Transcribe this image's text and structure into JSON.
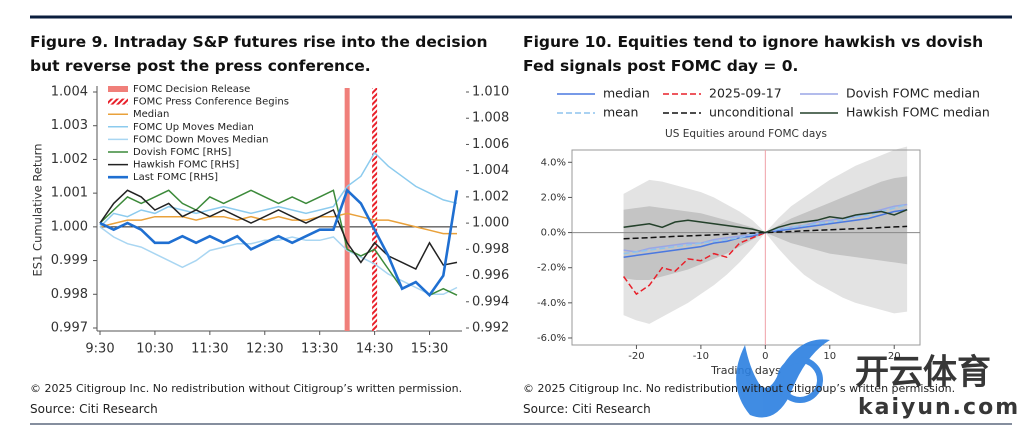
{
  "chart_data": [
    {
      "type": "line",
      "title": "Figure 9. Intraday S&P futures rise into the decision but reverse post the press conference.",
      "y_label": "ES1 Cumulative Return",
      "x": [
        "9:30",
        "9:45",
        "10:00",
        "10:15",
        "10:30",
        "10:45",
        "11:00",
        "11:15",
        "11:30",
        "11:45",
        "12:00",
        "12:15",
        "12:30",
        "12:45",
        "13:00",
        "13:15",
        "13:30",
        "13:45",
        "14:00",
        "14:15",
        "14:30",
        "14:45",
        "15:00",
        "15:15",
        "15:30",
        "15:45",
        "16:00"
      ],
      "xticks": [
        "9:30",
        "10:30",
        "11:30",
        "12:30",
        "13:30",
        "14:30",
        "15:30"
      ],
      "ylim": [
        0.997,
        1.004
      ],
      "yticks": [
        0.997,
        0.998,
        0.999,
        {
          "value": 1,
          "label": "1.000"
        },
        1.001,
        1.002,
        1.003,
        1.004
      ],
      "y2lim": [
        0.992,
        1.01
      ],
      "y2ticks": [
        0.992,
        0.994,
        0.996,
        0.998,
        {
          "value": 1,
          "label": "1.000"
        },
        1.002,
        1.004,
        1.006,
        1.008,
        {
          "value": 1.01,
          "label": "1.010"
        }
      ],
      "baseline": 1,
      "markers": [
        {
          "name": "FOMC Decision Release",
          "x": "14:00",
          "color": "#f07f7a",
          "style": "solid"
        },
        {
          "name": "FOMC Press Conference Begins",
          "x": "14:30",
          "color": "#e8202a",
          "style": "hatched"
        }
      ],
      "series": [
        {
          "name": "Median",
          "color": "#e9a13b",
          "style": "solid",
          "values": [
            1.0,
            1.0001,
            1.0002,
            1.0002,
            1.0003,
            1.0003,
            1.0003,
            1.0002,
            1.0003,
            1.0003,
            1.0002,
            1.0003,
            1.0002,
            1.0003,
            1.0002,
            1.0002,
            1.0003,
            1.0003,
            1.0004,
            1.0003,
            1.0002,
            1.0002,
            1.0001,
            1.0,
            0.9999,
            0.9998,
            0.9998
          ]
        },
        {
          "name": "FOMC Up Moves Median",
          "color": "#8ccbee",
          "style": "solid",
          "values": [
            1.0,
            1.0004,
            1.0003,
            1.0005,
            1.0004,
            1.0006,
            1.0005,
            1.0004,
            1.0005,
            1.0006,
            1.0005,
            1.0004,
            1.0005,
            1.0006,
            1.0005,
            1.0004,
            1.0005,
            1.0006,
            1.0012,
            1.0015,
            1.0022,
            1.0018,
            1.0015,
            1.0012,
            1.001,
            1.0008,
            1.0007
          ]
        },
        {
          "name": "FOMC Down Moves Median",
          "color": "#a9d6f2",
          "style": "solid",
          "values": [
            1.0,
            0.9997,
            0.9995,
            0.9994,
            0.9992,
            0.999,
            0.9988,
            0.999,
            0.9993,
            0.9994,
            0.9995,
            0.9995,
            0.9996,
            0.9996,
            0.9997,
            0.9996,
            0.9996,
            0.9997,
            0.9993,
            0.9991,
            0.9989,
            0.9986,
            0.9984,
            0.9982,
            0.998,
            0.998,
            0.9982
          ]
        },
        {
          "name": "Dovish FOMC [RHS]",
          "color": "#3c8a3a",
          "style": "solid",
          "axis": "y2",
          "values": [
            1.0,
            1.001,
            1.002,
            1.0015,
            1.002,
            1.0025,
            1.0015,
            1.001,
            1.002,
            1.0015,
            1.002,
            1.0025,
            1.002,
            1.0015,
            1.002,
            1.0015,
            1.002,
            1.0025,
            0.998,
            0.9975,
            0.998,
            0.9965,
            0.995,
            0.9955,
            0.9945,
            0.995,
            0.9945
          ]
        },
        {
          "name": "Hawkish FOMC [RHS]",
          "color": "#222222",
          "style": "solid",
          "axis": "y2",
          "values": [
            1.0,
            1.0015,
            1.0025,
            1.002,
            1.001,
            1.0015,
            1.0005,
            1.001,
            1.0005,
            1.001,
            1.0005,
            1.0,
            1.0005,
            1.001,
            1.0005,
            1.0,
            1.0005,
            1.001,
            0.9985,
            0.997,
            0.9985,
            0.9975,
            0.997,
            0.9965,
            0.9985,
            0.9968,
            0.997
          ]
        },
        {
          "name": "Last FOMC [RHS]",
          "color": "#1f6fd1",
          "style": "thick",
          "axis": "y2",
          "values": [
            1.0,
            0.9995,
            1.0,
            0.9995,
            0.9985,
            0.9985,
            0.999,
            0.9985,
            0.999,
            0.9985,
            0.999,
            0.998,
            0.9985,
            0.999,
            0.9985,
            0.999,
            0.9995,
            0.9995,
            1.0025,
            1.0015,
            0.9995,
            0.9975,
            0.995,
            0.9955,
            0.9945,
            0.996,
            1.0025
          ]
        }
      ],
      "copyright": "© 2025 Citigroup Inc. No redistribution without Citigroup’s written permission.",
      "source": "Source: Citi Research"
    },
    {
      "type": "line",
      "title": "Figure 10. Equities tend to ignore hawkish vs dovish Fed signals post FOMC day = 0.",
      "plot_title": "US Equities around FOMC days",
      "x_label": "Trading days",
      "x": [
        -22,
        -20,
        -18,
        -16,
        -14,
        -12,
        -10,
        -8,
        -6,
        -4,
        -2,
        0,
        2,
        4,
        6,
        8,
        10,
        12,
        14,
        16,
        18,
        20,
        22
      ],
      "xlim": [
        -30,
        24
      ],
      "xticks": [
        -20,
        -10,
        0,
        10,
        20
      ],
      "ylim": [
        -6.4,
        4.7
      ],
      "yticks": [
        {
          "value": -6,
          "label": "-6.0%"
        },
        {
          "value": -4,
          "label": "-4.0%"
        },
        {
          "value": -2,
          "label": "-2.0%"
        },
        {
          "value": 0,
          "label": "0.0%"
        },
        {
          "value": 2,
          "label": "2.0%"
        },
        {
          "value": 4,
          "label": "4.0%"
        }
      ],
      "baseline": 0,
      "vline": 0,
      "bands": [
        {
          "color": "#e3e3e3",
          "upper": [
            2.2,
            2.6,
            3.0,
            2.9,
            2.7,
            2.5,
            2.3,
            2.0,
            1.6,
            1.2,
            0.7,
            0.0,
            0.8,
            1.5,
            2.0,
            2.5,
            3.0,
            3.4,
            3.8,
            4.1,
            4.4,
            4.7,
            4.9
          ],
          "lower": [
            -4.7,
            -5.0,
            -5.2,
            -4.8,
            -4.4,
            -4.0,
            -3.5,
            -3.0,
            -2.4,
            -1.7,
            -0.9,
            0.0,
            -0.9,
            -1.7,
            -2.4,
            -2.9,
            -3.3,
            -3.7,
            -4.0,
            -4.2,
            -4.4,
            -4.6,
            -4.5
          ]
        },
        {
          "color": "#c4c4c4",
          "upper": [
            1.3,
            1.4,
            1.5,
            1.4,
            1.3,
            1.2,
            1.1,
            0.9,
            0.7,
            0.5,
            0.3,
            0.0,
            0.4,
            0.8,
            1.1,
            1.4,
            1.7,
            2.0,
            2.3,
            2.6,
            2.9,
            3.1,
            3.2
          ],
          "lower": [
            -2.6,
            -2.7,
            -2.7,
            -2.5,
            -2.3,
            -2.1,
            -1.8,
            -1.5,
            -1.2,
            -0.8,
            -0.4,
            0.0,
            -0.3,
            -0.6,
            -0.8,
            -1.0,
            -1.2,
            -1.3,
            -1.4,
            -1.5,
            -1.6,
            -1.7,
            -1.8
          ]
        }
      ],
      "series": [
        {
          "name": "median",
          "color": "#4a78e0",
          "style": "solid",
          "values": [
            -1.4,
            -1.3,
            -1.2,
            -1.1,
            -1.0,
            -0.9,
            -0.8,
            -0.6,
            -0.5,
            -0.3,
            -0.2,
            0.0,
            0.1,
            0.2,
            0.3,
            0.4,
            0.5,
            0.6,
            0.7,
            0.8,
            1.0,
            1.2,
            1.3
          ]
        },
        {
          "name": "2025-09-17",
          "color": "#e8202a",
          "style": "dashed",
          "values": [
            -2.5,
            -3.5,
            -3.0,
            -2.0,
            -2.2,
            -1.5,
            -1.6,
            -1.2,
            -1.4,
            -0.6,
            -0.3,
            0.0,
            null,
            null,
            null,
            null,
            null,
            null,
            null,
            null,
            null,
            null,
            null
          ]
        },
        {
          "name": "Dovish FOMC median",
          "color": "#9aa6e6",
          "style": "solid",
          "values": [
            -1.0,
            -1.1,
            -0.9,
            -0.8,
            -0.7,
            -0.6,
            -0.6,
            -0.4,
            -0.3,
            -0.2,
            -0.1,
            0.0,
            0.2,
            0.3,
            0.4,
            0.6,
            0.7,
            0.8,
            0.9,
            1.1,
            1.3,
            1.5,
            1.6
          ]
        },
        {
          "name": "mean",
          "color": "#8ec3ee",
          "style": "dashed",
          "values": [
            -1.2,
            -1.1,
            -1.0,
            -0.9,
            -0.8,
            -0.7,
            -0.6,
            -0.5,
            -0.4,
            -0.3,
            -0.1,
            0.0,
            0.2,
            0.3,
            0.4,
            0.5,
            0.6,
            0.7,
            0.9,
            1.0,
            1.2,
            1.4,
            1.6
          ]
        },
        {
          "name": "unconditional",
          "color": "#111111",
          "style": "dashed",
          "values": [
            -0.35,
            -0.32,
            -0.29,
            -0.25,
            -0.22,
            -0.19,
            -0.16,
            -0.13,
            -0.1,
            -0.06,
            -0.03,
            0.0,
            0.03,
            0.06,
            0.1,
            0.13,
            0.16,
            0.19,
            0.22,
            0.25,
            0.29,
            0.32,
            0.35
          ]
        },
        {
          "name": "Hawkish FOMC median",
          "color": "#23402a",
          "style": "solid",
          "values": [
            0.3,
            0.4,
            0.5,
            0.3,
            0.6,
            0.7,
            0.6,
            0.5,
            0.4,
            0.3,
            0.2,
            0.0,
            0.3,
            0.5,
            0.6,
            0.7,
            0.9,
            0.8,
            1.0,
            1.1,
            1.2,
            1.0,
            1.3
          ]
        }
      ],
      "copyright": "© 2025 Citigroup Inc. No redistribution without Citigroup’s written permission.",
      "source": "Source: Citi Research"
    }
  ],
  "watermark": {
    "text": "开云体育",
    "url": "kaiyun.com"
  }
}
